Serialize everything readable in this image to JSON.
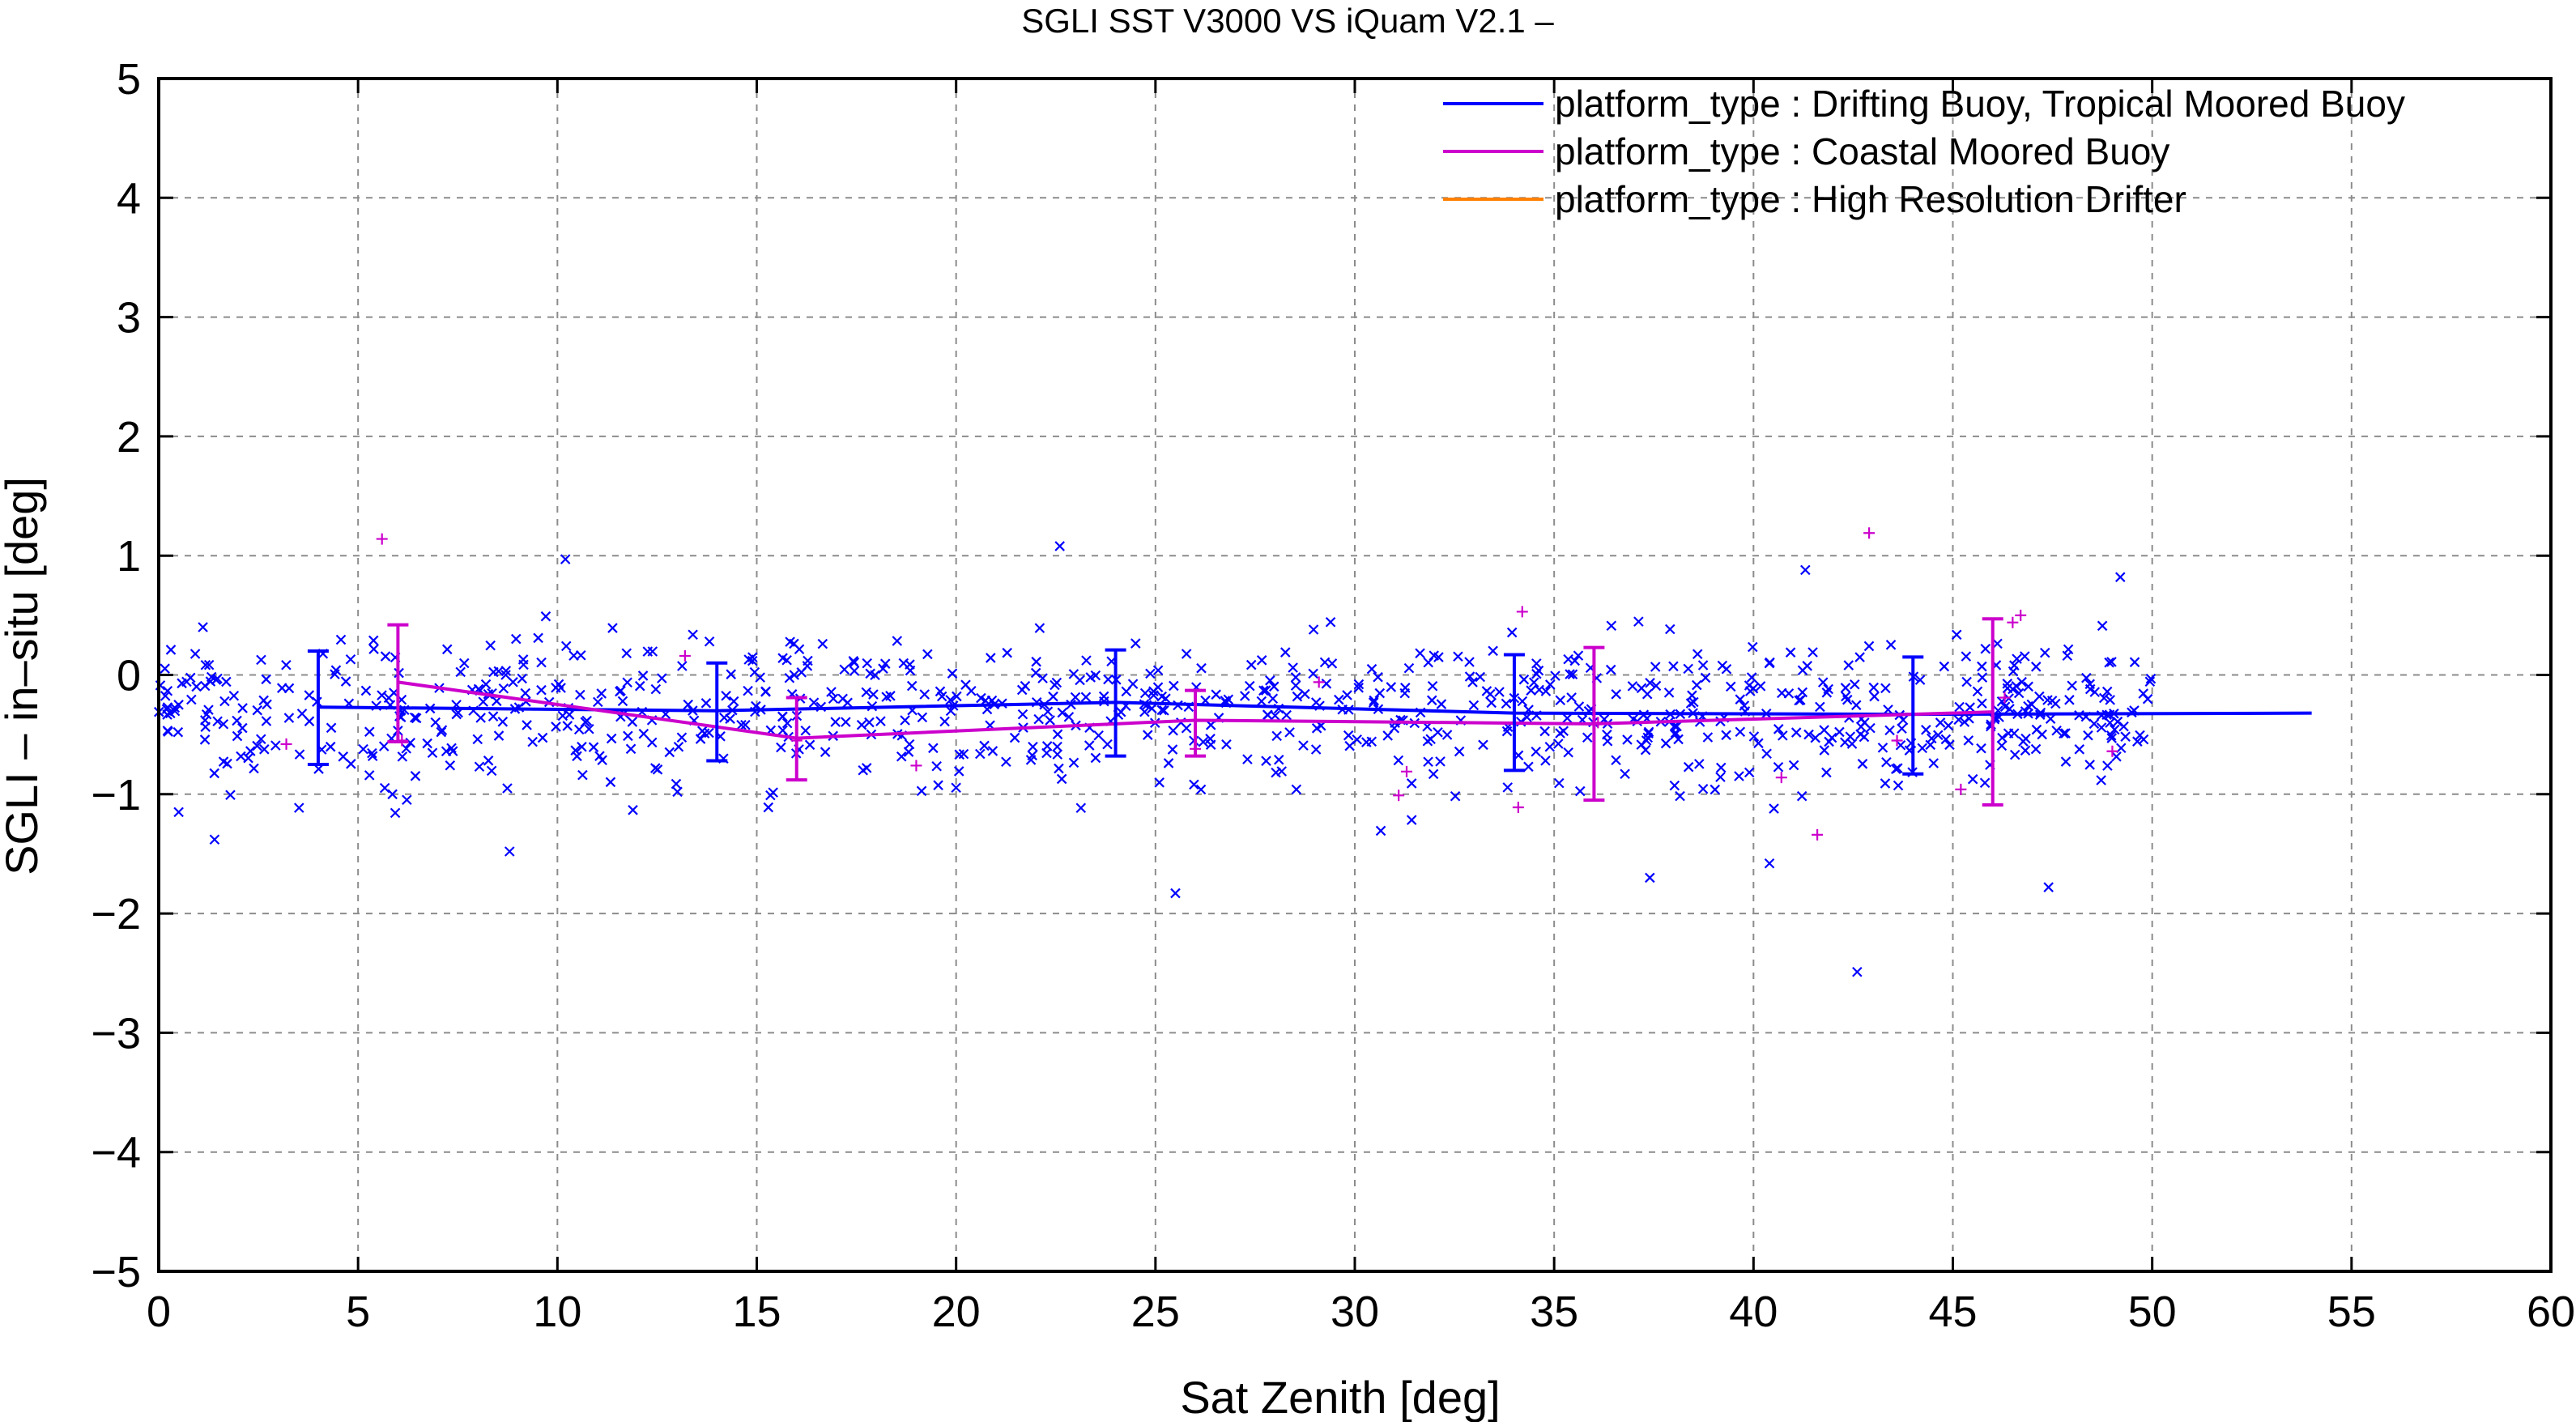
{
  "chart_data": {
    "type": "scatter",
    "title": "SGLI SST V3000 VS iQuam V2.1  –",
    "xlabel": "Sat Zenith [deg]",
    "ylabel": "SGLI – in–situ [deg]",
    "xlim": [
      0,
      60
    ],
    "ylim": [
      -5,
      5
    ],
    "x_ticks": [
      "0",
      "5",
      "10",
      "15",
      "20",
      "25",
      "30",
      "35",
      "40",
      "45",
      "50",
      "55",
      "60"
    ],
    "y_ticks": [
      "5",
      "4",
      "3",
      "2",
      "1",
      "0",
      "−1",
      "−2",
      "−3",
      "−4",
      "−5"
    ],
    "grid": true,
    "legend_position": "top-right",
    "series": [
      {
        "name": "platform_type : Drifting Buoy, Tropical Moored Buoy",
        "color": "#0000ff",
        "marker": "x",
        "mean_line": {
          "x": [
            4,
            14,
            24,
            34,
            44,
            54
          ],
          "y": [
            -0.27,
            -0.3,
            -0.23,
            -0.32,
            -0.33,
            -0.32
          ]
        },
        "error_bars": [
          {
            "x": 4,
            "mean": -0.27,
            "low": -0.75,
            "high": 0.2
          },
          {
            "x": 14,
            "mean": -0.3,
            "low": -0.72,
            "high": 0.1
          },
          {
            "x": 24,
            "mean": -0.23,
            "low": -0.68,
            "high": 0.21
          },
          {
            "x": 34,
            "mean": -0.32,
            "low": -0.8,
            "high": 0.17
          },
          {
            "x": 44,
            "mean": -0.33,
            "low": -0.83,
            "high": 0.15
          }
        ],
        "scatter": {
          "x_range": [
            0,
            50
          ],
          "center": -0.3,
          "spread": 0.42,
          "count": 900,
          "notable_points": [
            {
              "x": 0.5,
              "y": -1.15
            },
            {
              "x": 1.4,
              "y": -1.38
            },
            {
              "x": 8.8,
              "y": -1.48
            },
            {
              "x": 10.2,
              "y": 0.97
            },
            {
              "x": 22.6,
              "y": 1.08
            },
            {
              "x": 25.5,
              "y": -1.83
            },
            {
              "x": 37.4,
              "y": -1.7
            },
            {
              "x": 40.4,
              "y": -1.58
            },
            {
              "x": 41.3,
              "y": 0.88
            },
            {
              "x": 42.6,
              "y": -2.49
            },
            {
              "x": 47.4,
              "y": -1.78
            },
            {
              "x": 49.2,
              "y": 0.82
            }
          ]
        }
      },
      {
        "name": "platform_type : Coastal Moored Buoy",
        "color": "#cc00cc",
        "marker": "+",
        "mean_line": {
          "x": [
            6,
            16,
            26,
            36,
            46
          ],
          "y": [
            -0.06,
            -0.53,
            -0.38,
            -0.41,
            -0.31
          ]
        },
        "error_bars": [
          {
            "x": 6,
            "mean": -0.06,
            "low": -0.56,
            "high": 0.42
          },
          {
            "x": 16,
            "mean": -0.53,
            "low": -0.88,
            "high": -0.19
          },
          {
            "x": 26,
            "mean": -0.38,
            "low": -0.68,
            "high": -0.13
          },
          {
            "x": 36,
            "mean": -0.41,
            "low": -1.05,
            "high": 0.23
          },
          {
            "x": 46,
            "mean": -0.31,
            "low": -1.09,
            "high": 0.47
          }
        ],
        "scatter": {
          "points": [
            {
              "x": 5.6,
              "y": 1.14
            },
            {
              "x": 3.2,
              "y": -0.58
            },
            {
              "x": 6.1,
              "y": -0.55
            },
            {
              "x": 13.2,
              "y": 0.16
            },
            {
              "x": 16.0,
              "y": -0.55
            },
            {
              "x": 19.0,
              "y": -0.76
            },
            {
              "x": 26.0,
              "y": -0.62
            },
            {
              "x": 29.1,
              "y": -0.06
            },
            {
              "x": 31.1,
              "y": -1.01
            },
            {
              "x": 31.3,
              "y": -0.81
            },
            {
              "x": 34.2,
              "y": 0.53
            },
            {
              "x": 34.1,
              "y": -1.11
            },
            {
              "x": 36.1,
              "y": -0.4
            },
            {
              "x": 40.7,
              "y": -0.86
            },
            {
              "x": 41.6,
              "y": -1.34
            },
            {
              "x": 42.9,
              "y": 1.19
            },
            {
              "x": 43.6,
              "y": -0.55
            },
            {
              "x": 45.2,
              "y": -0.96
            },
            {
              "x": 46.3,
              "y": -0.19
            },
            {
              "x": 46.5,
              "y": 0.44
            },
            {
              "x": 46.7,
              "y": 0.5
            },
            {
              "x": 49.0,
              "y": -0.64
            }
          ]
        }
      },
      {
        "name": "platform_type : High Resolution Drifter",
        "color": "#ff8000",
        "marker": "none",
        "mean_line": {
          "x": [],
          "y": []
        },
        "error_bars": [],
        "scatter": {
          "points": []
        }
      }
    ]
  }
}
